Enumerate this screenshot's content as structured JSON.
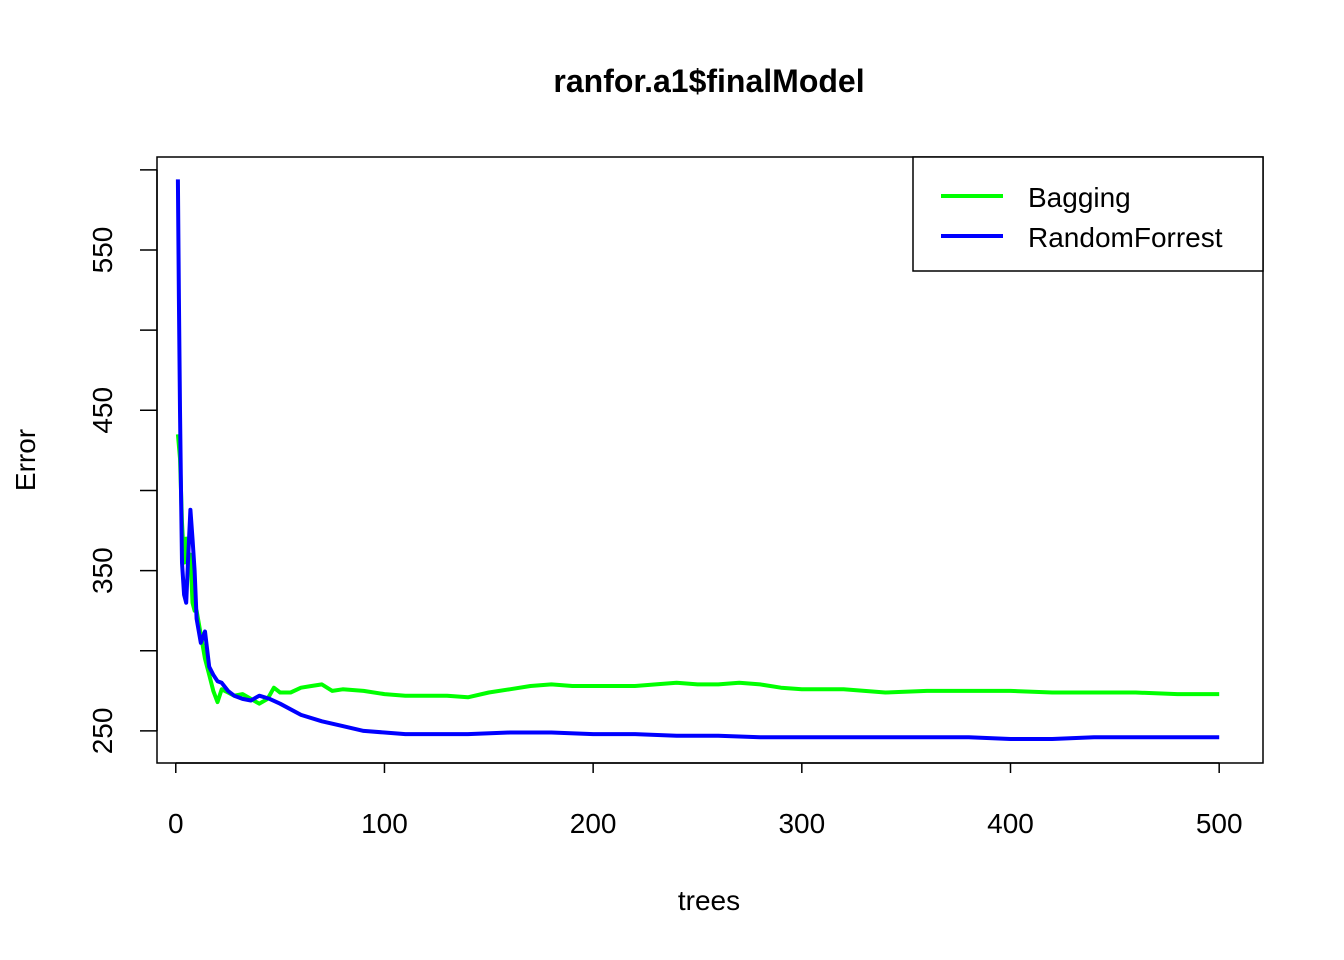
{
  "chart_data": {
    "type": "line",
    "title": "ranfor.a1$finalModel",
    "xlabel": "trees",
    "ylabel": "Error",
    "xlim": [
      -9,
      521
    ],
    "ylim": [
      230,
      608
    ],
    "x_ticks": [
      "0",
      "100",
      "200",
      "300",
      "400",
      "500"
    ],
    "y_ticks": [
      "250",
      "300",
      "350",
      "400",
      "450",
      "500",
      "550",
      "600"
    ],
    "y_tick_labels_shown": [
      "250",
      "350",
      "450",
      "550"
    ],
    "grid": false,
    "legend": "top-right",
    "series": [
      {
        "name": "Bagging",
        "color": "#00ff00",
        "x": [
          1,
          2,
          3,
          4,
          5,
          6,
          7,
          8,
          9,
          10,
          12,
          14,
          16,
          18,
          20,
          22,
          25,
          28,
          32,
          36,
          40,
          44,
          47,
          50,
          55,
          60,
          65,
          70,
          75,
          80,
          90,
          100,
          110,
          120,
          130,
          140,
          150,
          160,
          170,
          180,
          190,
          200,
          210,
          220,
          230,
          240,
          250,
          260,
          270,
          280,
          290,
          300,
          320,
          340,
          360,
          380,
          400,
          420,
          440,
          460,
          480,
          500
        ],
        "values": [
          435,
          420,
          380,
          355,
          370,
          350,
          360,
          330,
          325,
          325,
          310,
          295,
          285,
          275,
          268,
          276,
          274,
          272,
          273,
          270,
          267,
          270,
          277,
          274,
          274,
          277,
          278,
          279,
          275,
          276,
          275,
          273,
          272,
          272,
          272,
          271,
          274,
          276,
          278,
          279,
          278,
          278,
          278,
          278,
          279,
          280,
          279,
          279,
          280,
          279,
          277,
          276,
          276,
          274,
          275,
          275,
          275,
          274,
          274,
          274,
          273,
          273
        ]
      },
      {
        "name": "RandomForrest",
        "color": "#0000ff",
        "x": [
          1,
          1.5,
          2,
          2.5,
          3,
          4,
          5,
          6,
          7,
          8,
          9,
          10,
          12,
          14,
          16,
          18,
          20,
          22,
          25,
          28,
          32,
          36,
          40,
          45,
          50,
          60,
          70,
          80,
          90,
          100,
          110,
          120,
          140,
          160,
          180,
          200,
          220,
          240,
          260,
          280,
          300,
          320,
          340,
          360,
          380,
          400,
          420,
          440,
          460,
          480,
          500
        ],
        "values": [
          594,
          520,
          450,
          400,
          355,
          335,
          330,
          360,
          388,
          370,
          350,
          320,
          305,
          312,
          290,
          285,
          281,
          280,
          275,
          272,
          270,
          269,
          272,
          270,
          267,
          260,
          256,
          253,
          250,
          249,
          248,
          248,
          248,
          249,
          249,
          248,
          248,
          247,
          247,
          246,
          246,
          246,
          246,
          246,
          246,
          245,
          245,
          246,
          246,
          246,
          246
        ]
      }
    ]
  }
}
